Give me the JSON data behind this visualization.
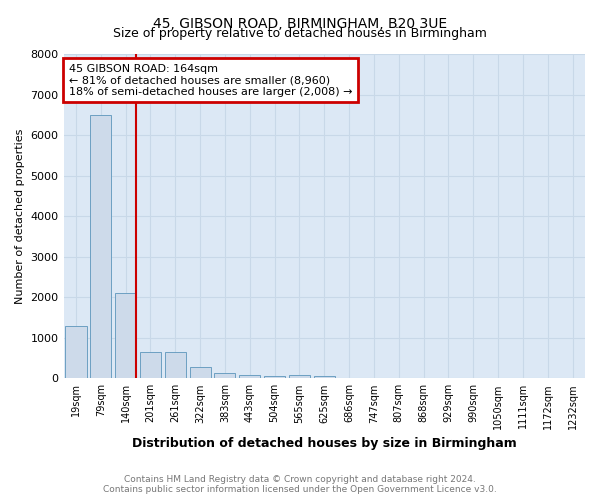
{
  "title": "45, GIBSON ROAD, BIRMINGHAM, B20 3UE",
  "subtitle": "Size of property relative to detached houses in Birmingham",
  "xlabel": "Distribution of detached houses by size in Birmingham",
  "ylabel": "Number of detached properties",
  "categories": [
    "19sqm",
    "79sqm",
    "140sqm",
    "201sqm",
    "261sqm",
    "322sqm",
    "383sqm",
    "443sqm",
    "504sqm",
    "565sqm",
    "625sqm",
    "686sqm",
    "747sqm",
    "807sqm",
    "868sqm",
    "929sqm",
    "990sqm",
    "1050sqm",
    "1111sqm",
    "1172sqm",
    "1232sqm"
  ],
  "values": [
    1300,
    6500,
    2100,
    650,
    650,
    280,
    130,
    80,
    50,
    80,
    50,
    0,
    0,
    0,
    0,
    0,
    0,
    0,
    0,
    0,
    0
  ],
  "bar_color": "#cddaea",
  "bar_edge_color": "#6c9fc2",
  "red_line_x": 2.42,
  "red_line_color": "#cc0000",
  "annotation_text": "45 GIBSON ROAD: 164sqm\n← 81% of detached houses are smaller (8,960)\n18% of semi-detached houses are larger (2,008) →",
  "annotation_box_color": "#cc0000",
  "ylim": [
    0,
    8000
  ],
  "yticks": [
    0,
    1000,
    2000,
    3000,
    4000,
    5000,
    6000,
    7000,
    8000
  ],
  "footer_line1": "Contains HM Land Registry data © Crown copyright and database right 2024.",
  "footer_line2": "Contains public sector information licensed under the Open Government Licence v3.0.",
  "grid_color": "#c8d8e8",
  "background_color": "#dce8f5"
}
